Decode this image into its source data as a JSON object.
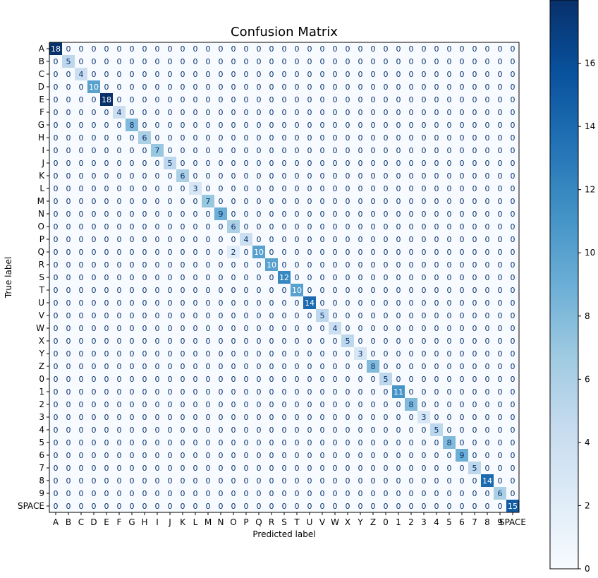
{
  "chart_data": {
    "type": "heatmap",
    "title": "Confusion Matrix",
    "xlabel": "Predicted label",
    "ylabel": "True label",
    "labels": [
      "A",
      "B",
      "C",
      "D",
      "E",
      "F",
      "G",
      "H",
      "I",
      "J",
      "K",
      "L",
      "M",
      "N",
      "O",
      "P",
      "Q",
      "R",
      "S",
      "T",
      "U",
      "V",
      "W",
      "X",
      "Y",
      "Z",
      "0",
      "1",
      "2",
      "3",
      "4",
      "5",
      "6",
      "7",
      "8",
      "9",
      "SPACE"
    ],
    "diagonal": [
      18,
      5,
      4,
      10,
      18,
      4,
      8,
      6,
      7,
      5,
      6,
      3,
      7,
      9,
      6,
      4,
      10,
      10,
      12,
      10,
      14,
      5,
      4,
      5,
      3,
      8,
      5,
      11,
      8,
      3,
      5,
      8,
      9,
      5,
      14,
      6,
      15
    ],
    "off_diagonal": [
      {
        "true": "Q",
        "predicted": "O",
        "value": 2
      }
    ],
    "colormap": "Blues",
    "colorbar": {
      "min": 0,
      "max": 18,
      "ticks": [
        0,
        2,
        4,
        6,
        8,
        10,
        12,
        14,
        16
      ]
    }
  }
}
